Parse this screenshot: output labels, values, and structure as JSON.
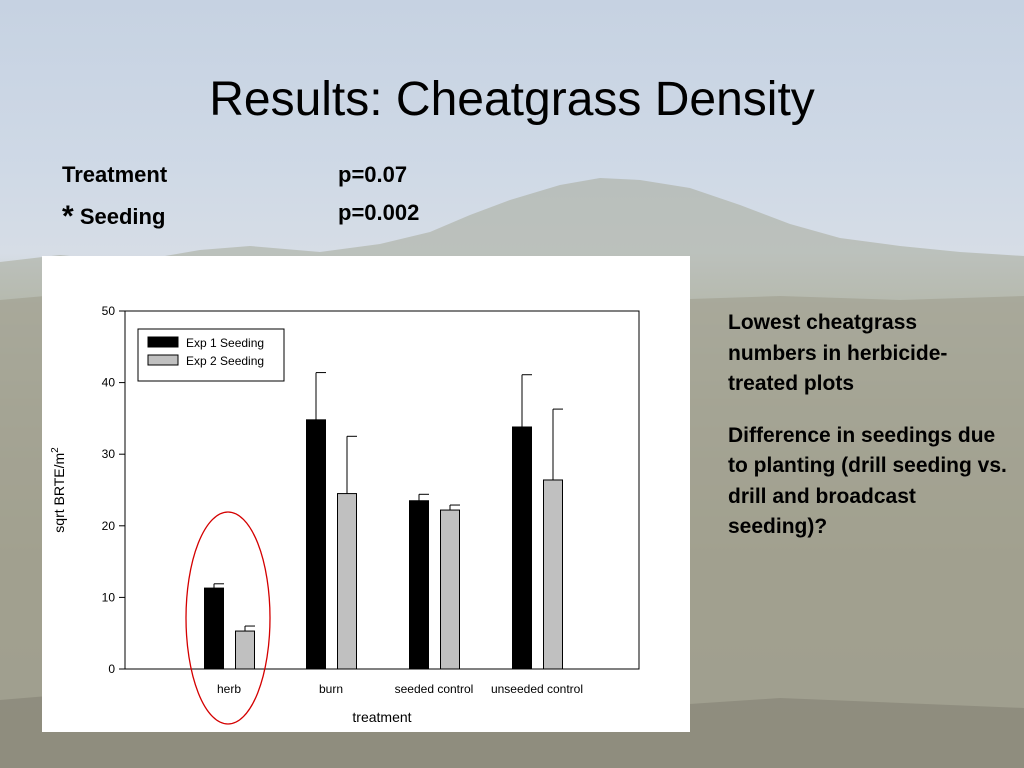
{
  "slide": {
    "title": "Results: Cheatgrass Density",
    "stats": [
      {
        "star": "",
        "label": "Treatment",
        "p": "p=0.07"
      },
      {
        "star": "*",
        "label": "Seeding",
        "p": "p=0.002"
      }
    ],
    "notes": [
      "Lowest cheatgrass numbers in herbicide-treated plots",
      "Difference in seedings due to planting (drill seeding vs. drill and broadcast seeding)?"
    ]
  },
  "chart_data": {
    "type": "bar",
    "categories": [
      "herb",
      "burn",
      "seeded control",
      "unseeded control"
    ],
    "series": [
      {
        "name": "Exp 1 Seeding",
        "color": "#000000",
        "values": [
          11.3,
          34.8,
          23.5,
          33.8
        ],
        "errors": [
          0.6,
          6.6,
          0.9,
          7.3
        ]
      },
      {
        "name": "Exp 2 Seeding",
        "color": "#c0c0c0",
        "values": [
          5.3,
          24.5,
          22.2,
          26.4
        ],
        "errors": [
          0.7,
          8.0,
          0.7,
          9.9
        ]
      }
    ],
    "xlabel": "treatment",
    "ylabel": "sqrt BRTE/m",
    "ylabel_superscript": "2",
    "ylim": [
      0,
      50
    ],
    "yticks": [
      0,
      10,
      20,
      30,
      40,
      50
    ],
    "grid": false,
    "legend_position": "top-left",
    "highlight": {
      "category": "herb",
      "shape": "ellipse",
      "color": "#d40000"
    }
  }
}
